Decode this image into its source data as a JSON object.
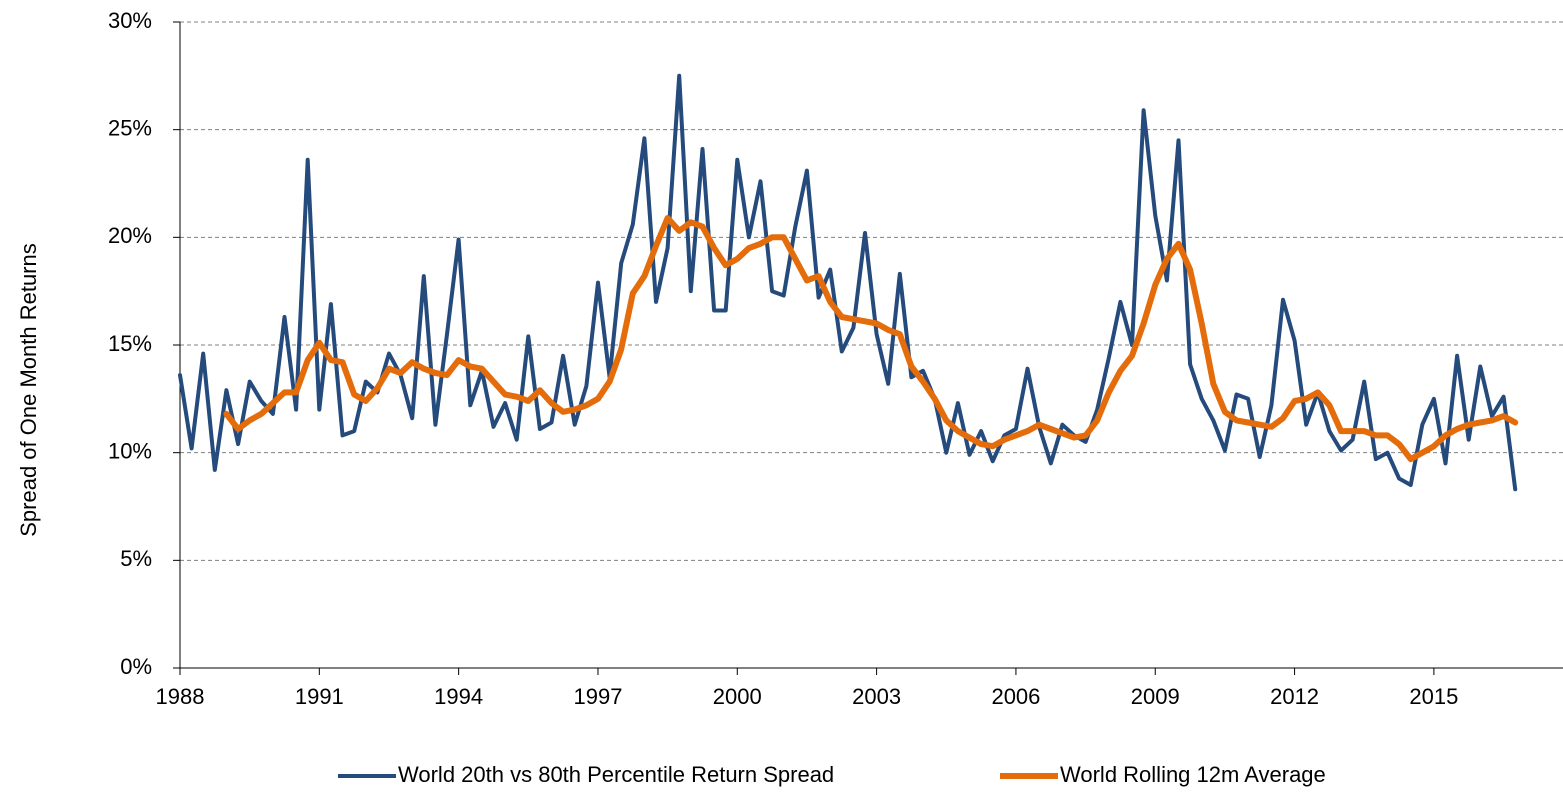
{
  "chart_data": {
    "type": "line",
    "y_label": "Spread of One Month Returns",
    "x": [
      1988,
      1988.25,
      1988.5,
      1988.75,
      1989,
      1989.25,
      1989.5,
      1989.75,
      1990,
      1990.25,
      1990.5,
      1990.75,
      1991,
      1991.25,
      1991.5,
      1991.75,
      1992,
      1992.25,
      1992.5,
      1992.75,
      1993,
      1993.25,
      1993.5,
      1993.75,
      1994,
      1994.25,
      1994.5,
      1994.75,
      1995,
      1995.25,
      1995.5,
      1995.75,
      1996,
      1996.25,
      1996.5,
      1996.75,
      1997,
      1997.25,
      1997.5,
      1997.75,
      1998,
      1998.25,
      1998.5,
      1998.75,
      1999,
      1999.25,
      1999.5,
      1999.75,
      2000,
      2000.25,
      2000.5,
      2000.75,
      2001,
      2001.25,
      2001.5,
      2001.75,
      2002,
      2002.25,
      2002.5,
      2002.75,
      2003,
      2003.25,
      2003.5,
      2003.75,
      2004,
      2004.25,
      2004.5,
      2004.75,
      2005,
      2005.25,
      2005.5,
      2005.75,
      2006,
      2006.25,
      2006.5,
      2006.75,
      2007,
      2007.25,
      2007.5,
      2007.75,
      2008,
      2008.25,
      2008.5,
      2008.75,
      2009,
      2009.25,
      2009.5,
      2009.75,
      2010,
      2010.25,
      2010.5,
      2010.75,
      2011,
      2011.25,
      2011.5,
      2011.75,
      2012,
      2012.25,
      2012.5,
      2012.75,
      2013,
      2013.25,
      2013.5,
      2013.75,
      2014,
      2014.25,
      2014.5,
      2014.75,
      2015,
      2015.25,
      2015.5,
      2015.75,
      2016,
      2016.25,
      2016.5,
      2016.75
    ],
    "series": [
      {
        "name": "World 20th vs 80th Percentile Return Spread",
        "color": "#254a7c",
        "values": [
          13.6,
          10.2,
          14.6,
          9.2,
          12.9,
          10.4,
          13.3,
          12.4,
          11.8,
          16.3,
          12.0,
          23.6,
          12.0,
          16.9,
          10.8,
          11.0,
          13.3,
          12.8,
          14.6,
          13.6,
          11.6,
          18.2,
          11.3,
          15.5,
          19.9,
          12.2,
          13.8,
          11.2,
          12.3,
          10.6,
          15.4,
          11.1,
          11.4,
          14.5,
          11.3,
          13.1,
          17.9,
          13.5,
          18.8,
          20.6,
          24.6,
          17.0,
          19.5,
          27.5,
          17.5,
          24.1,
          16.6,
          16.6,
          23.6,
          20.0,
          22.6,
          17.5,
          17.3,
          20.5,
          23.1,
          17.2,
          18.5,
          14.7,
          15.8,
          20.2,
          15.5,
          13.2,
          18.3,
          13.5,
          13.8,
          12.5,
          10.0,
          12.3,
          9.9,
          11.0,
          9.6,
          10.8,
          11.1,
          13.9,
          11.2,
          9.5,
          11.3,
          10.8,
          10.5,
          12.0,
          14.4,
          17.0,
          15.0,
          25.9,
          21.0,
          18.0,
          24.5,
          14.1,
          12.5,
          11.5,
          10.1,
          12.7,
          12.5,
          9.8,
          12.2,
          17.1,
          15.2,
          11.3,
          12.8,
          11.0,
          10.1,
          10.6,
          13.3,
          9.7,
          10.0,
          8.8,
          8.5,
          11.3,
          12.5,
          9.5,
          14.5,
          10.6,
          14.0,
          11.7,
          12.6,
          8.3
        ]
      },
      {
        "name": "World Rolling 12m Average",
        "color": "#e46c0a",
        "values": [
          null,
          null,
          null,
          null,
          11.8,
          11.1,
          11.5,
          11.8,
          12.3,
          12.8,
          12.8,
          14.3,
          15.1,
          14.3,
          14.2,
          12.7,
          12.4,
          13.0,
          13.9,
          13.7,
          14.2,
          13.9,
          13.7,
          13.6,
          14.3,
          14.0,
          13.9,
          13.3,
          12.7,
          12.6,
          12.4,
          12.9,
          12.3,
          11.9,
          12.0,
          12.2,
          12.5,
          13.3,
          14.8,
          17.4,
          18.2,
          19.6,
          20.9,
          20.3,
          20.7,
          20.5,
          19.5,
          18.7,
          19.0,
          19.5,
          19.7,
          20.0,
          20.0,
          19.0,
          18.0,
          18.2,
          17.0,
          16.3,
          16.2,
          16.1,
          16.0,
          15.7,
          15.5,
          14.0,
          13.3,
          12.5,
          11.5,
          11.0,
          10.7,
          10.4,
          10.3,
          10.6,
          10.8,
          11.0,
          11.3,
          11.1,
          10.9,
          10.7,
          10.8,
          11.5,
          12.8,
          13.8,
          14.5,
          16.0,
          17.8,
          19.0,
          19.7,
          18.5,
          16.0,
          13.2,
          11.9,
          11.5,
          11.4,
          11.3,
          11.2,
          11.6,
          12.4,
          12.5,
          12.8,
          12.2,
          11.0,
          11.0,
          11.0,
          10.8,
          10.8,
          10.4,
          9.7,
          10.0,
          10.3,
          10.8,
          11.1,
          11.3,
          11.4,
          11.5,
          11.7,
          11.4
        ]
      }
    ],
    "xlim": [
      1988,
      2017.78
    ],
    "xticks": [
      1988,
      1991,
      1994,
      1997,
      2000,
      2003,
      2006,
      2009,
      2012,
      2015
    ],
    "ylim": [
      0,
      30
    ],
    "yticks": [
      {
        "value": 0,
        "label": "0%"
      },
      {
        "value": 5,
        "label": "5%"
      },
      {
        "value": 10,
        "label": "10%"
      },
      {
        "value": 15,
        "label": "15%"
      },
      {
        "value": 20,
        "label": "20%"
      },
      {
        "value": 25,
        "label": "25%"
      },
      {
        "value": 30,
        "label": "30%"
      }
    ],
    "grid": true,
    "legend": "bottom"
  }
}
